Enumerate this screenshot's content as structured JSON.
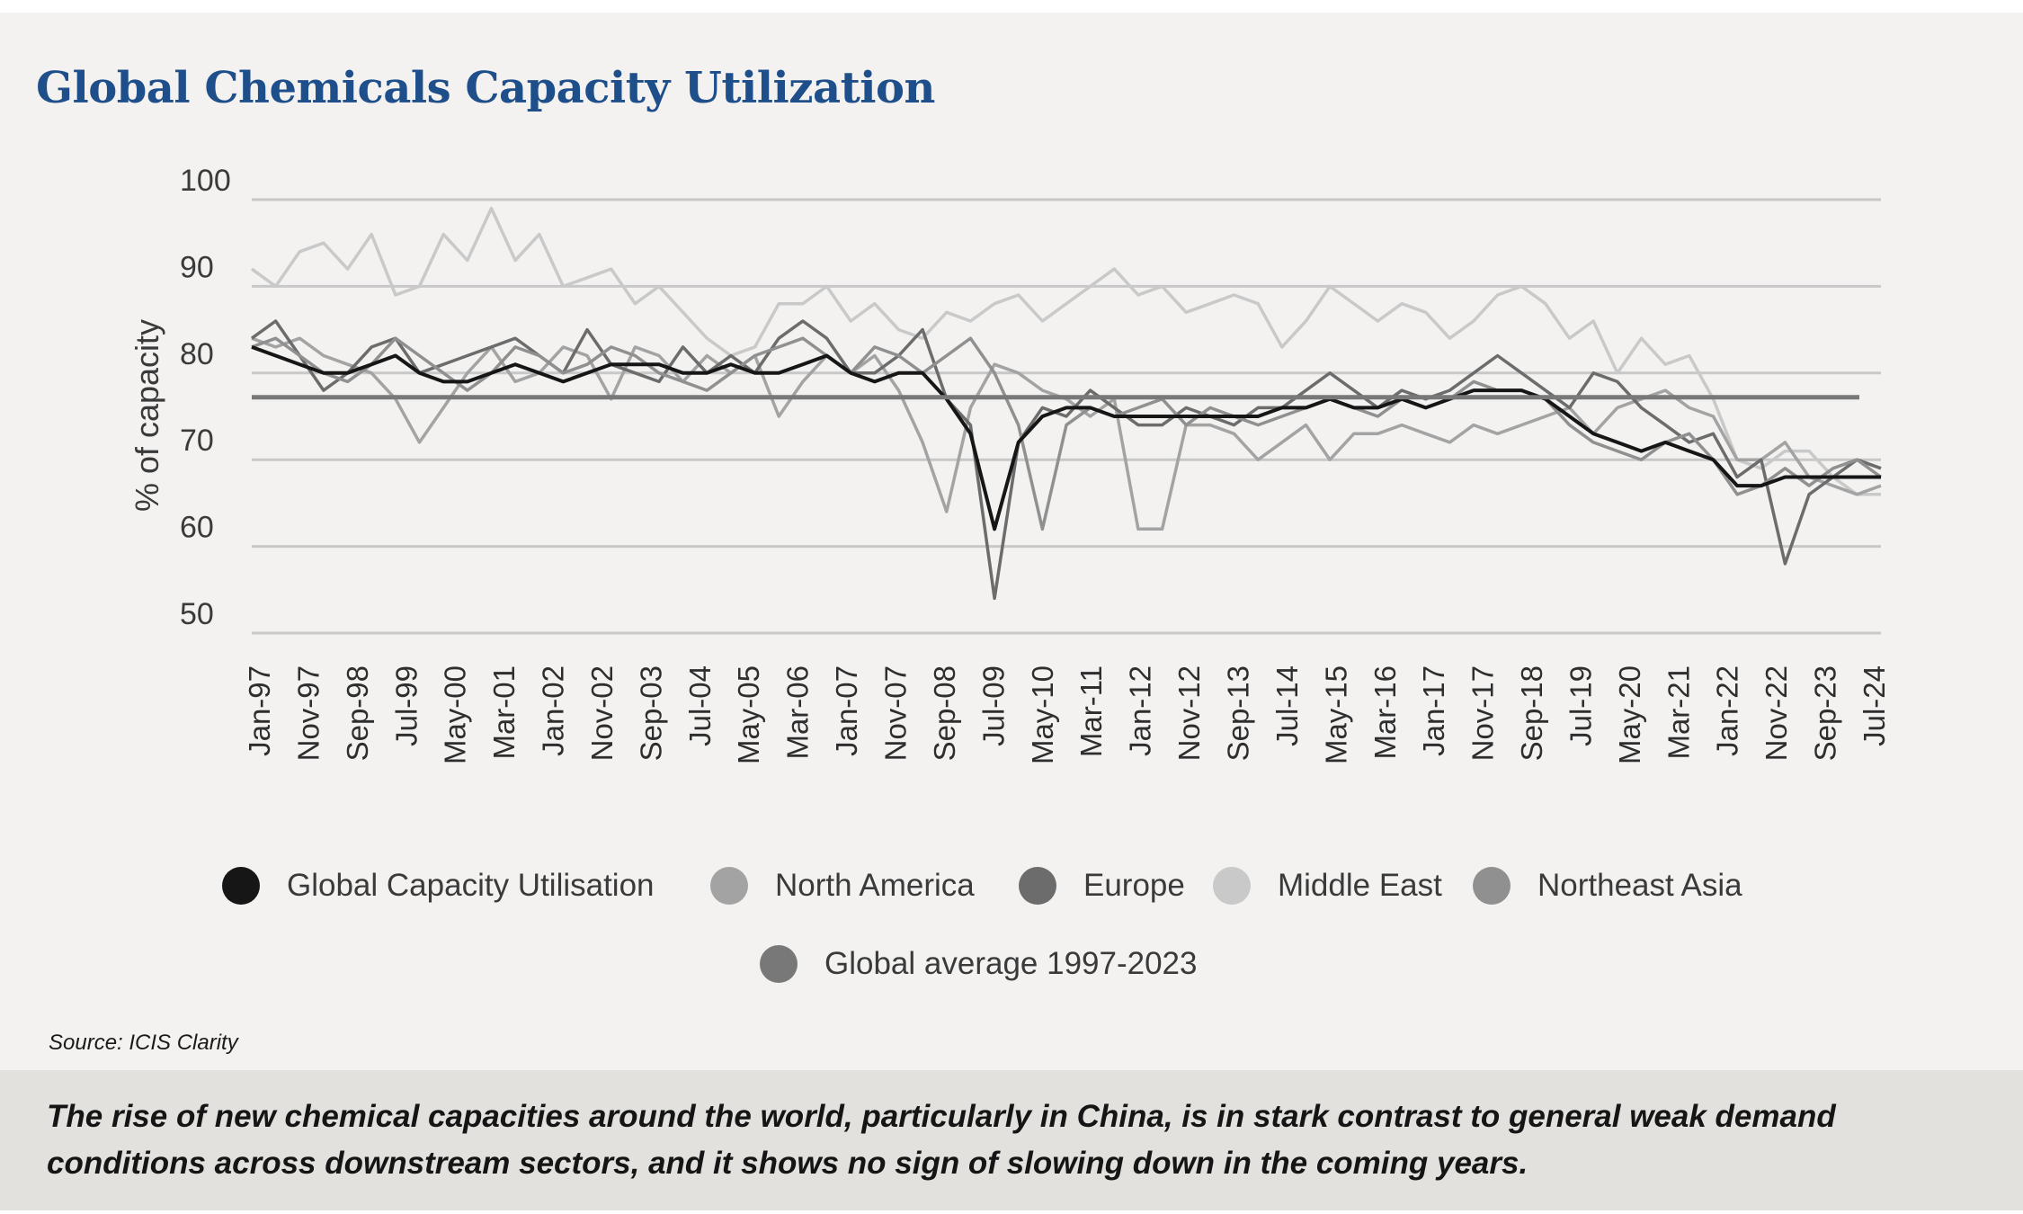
{
  "title": "Global Chemicals Capacity Utilization",
  "source": "Source: ICIS Clarity",
  "caption": "The rise of new chemical capacities around the world, particularly in China, is in stark contrast to general weak demand conditions across downstream sectors, and it shows no sign of slowing down in the coming years.",
  "legend": [
    {
      "label": "Global Capacity Utilisation",
      "color": "#161616"
    },
    {
      "label": "North America",
      "color": "#a3a3a3"
    },
    {
      "label": "Europe",
      "color": "#6c6c6c"
    },
    {
      "label": "Middle East",
      "color": "#c9c9c9"
    },
    {
      "label": "Northeast Asia",
      "color": "#909090"
    },
    {
      "label": "Global average 1997-2023",
      "color": "#787878"
    }
  ],
  "chart_data": {
    "type": "line",
    "ylabel": "% of capacity",
    "xlabel": "",
    "ylim": [
      50,
      100
    ],
    "yticks": [
      100,
      90,
      80,
      70,
      60,
      50
    ],
    "grid": true,
    "legend_position": "bottom",
    "x_tick_labels": [
      "Jan-97",
      "Nov-97",
      "Sep-98",
      "Jul-99",
      "May-00",
      "Mar-01",
      "Jan-02",
      "Nov-02",
      "Sep-03",
      "Jul-04",
      "May-05",
      "Mar-06",
      "Jan-07",
      "Nov-07",
      "Sep-08",
      "Jul-09",
      "May-10",
      "Mar-11",
      "Jan-12",
      "Nov-12",
      "Sep-13",
      "Jul-14",
      "May-15",
      "Mar-16",
      "Jan-17",
      "Nov-17",
      "Sep-18",
      "Jul-19",
      "May-20",
      "Mar-21",
      "Jan-22",
      "Nov-22",
      "Sep-23",
      "Jul-24"
    ],
    "series": [
      {
        "name": "Middle East",
        "color": "#c9c9c9",
        "values": [
          92,
          90,
          94,
          95,
          92,
          96,
          89,
          90,
          96,
          93,
          99,
          93,
          96,
          90,
          91,
          92,
          88,
          90,
          87,
          84,
          82,
          83,
          88,
          88,
          90,
          86,
          88,
          85,
          84,
          87,
          86,
          88,
          89,
          86,
          88,
          90,
          92,
          89,
          90,
          87,
          88,
          89,
          88,
          83,
          86,
          90,
          88,
          86,
          88,
          87,
          84,
          86,
          89,
          90,
          88,
          84,
          86,
          80,
          84,
          81,
          82,
          77,
          70,
          69,
          71,
          71,
          68,
          66,
          66
        ]
      },
      {
        "name": "North America",
        "color": "#a3a3a3",
        "values": [
          84,
          83,
          84,
          82,
          81,
          80,
          77,
          72,
          76,
          80,
          83,
          79,
          80,
          83,
          82,
          77,
          83,
          82,
          79,
          82,
          80,
          82,
          75,
          79,
          82,
          80,
          82,
          78,
          72,
          64,
          76,
          81,
          80,
          78,
          77,
          75,
          77,
          62,
          62,
          74,
          74,
          73,
          70,
          72,
          74,
          70,
          73,
          73,
          74,
          73,
          72,
          74,
          73,
          74,
          75,
          76,
          73,
          76,
          77,
          78,
          76,
          75,
          70,
          70,
          72,
          68,
          67,
          66,
          67
        ]
      },
      {
        "name": "Europe",
        "color": "#6c6c6c",
        "values": [
          84,
          86,
          82,
          78,
          80,
          83,
          84,
          80,
          81,
          82,
          83,
          84,
          82,
          80,
          85,
          81,
          80,
          79,
          83,
          80,
          82,
          80,
          84,
          86,
          84,
          80,
          80,
          82,
          85,
          77,
          74,
          54,
          72,
          76,
          75,
          78,
          76,
          74,
          74,
          76,
          75,
          74,
          76,
          76,
          78,
          80,
          78,
          76,
          78,
          77,
          78,
          80,
          82,
          80,
          78,
          76,
          80,
          79,
          76,
          74,
          72,
          73,
          68,
          70,
          58,
          66,
          68,
          70,
          69
        ]
      },
      {
        "name": "Northeast Asia",
        "color": "#909090",
        "values": [
          83,
          84,
          82,
          80,
          79,
          81,
          84,
          82,
          80,
          78,
          80,
          83,
          82,
          80,
          81,
          83,
          82,
          80,
          79,
          78,
          80,
          82,
          83,
          84,
          82,
          80,
          83,
          82,
          80,
          82,
          84,
          80,
          74,
          62,
          74,
          76,
          75,
          76,
          77,
          74,
          76,
          75,
          74,
          75,
          76,
          77,
          76,
          75,
          77,
          76,
          77,
          79,
          78,
          78,
          77,
          74,
          72,
          71,
          70,
          72,
          73,
          70,
          66,
          67,
          69,
          67,
          69,
          70,
          68
        ]
      },
      {
        "name": "Global Capacity Utilisation",
        "color": "#161616",
        "values": [
          83,
          82,
          81,
          80,
          80,
          81,
          82,
          80,
          79,
          79,
          80,
          81,
          80,
          79,
          80,
          81,
          81,
          81,
          80,
          80,
          81,
          80,
          80,
          81,
          82,
          80,
          79,
          80,
          80,
          77,
          73,
          62,
          72,
          75,
          76,
          76,
          75,
          75,
          75,
          75,
          75,
          75,
          75,
          76,
          76,
          77,
          76,
          76,
          77,
          76,
          77,
          78,
          78,
          78,
          77,
          75,
          73,
          72,
          71,
          72,
          71,
          70,
          67,
          67,
          68,
          68,
          68,
          68,
          68
        ]
      },
      {
        "name": "Global average 1997-2023",
        "color": "#787878",
        "values": [
          77.2
        ]
      }
    ]
  }
}
